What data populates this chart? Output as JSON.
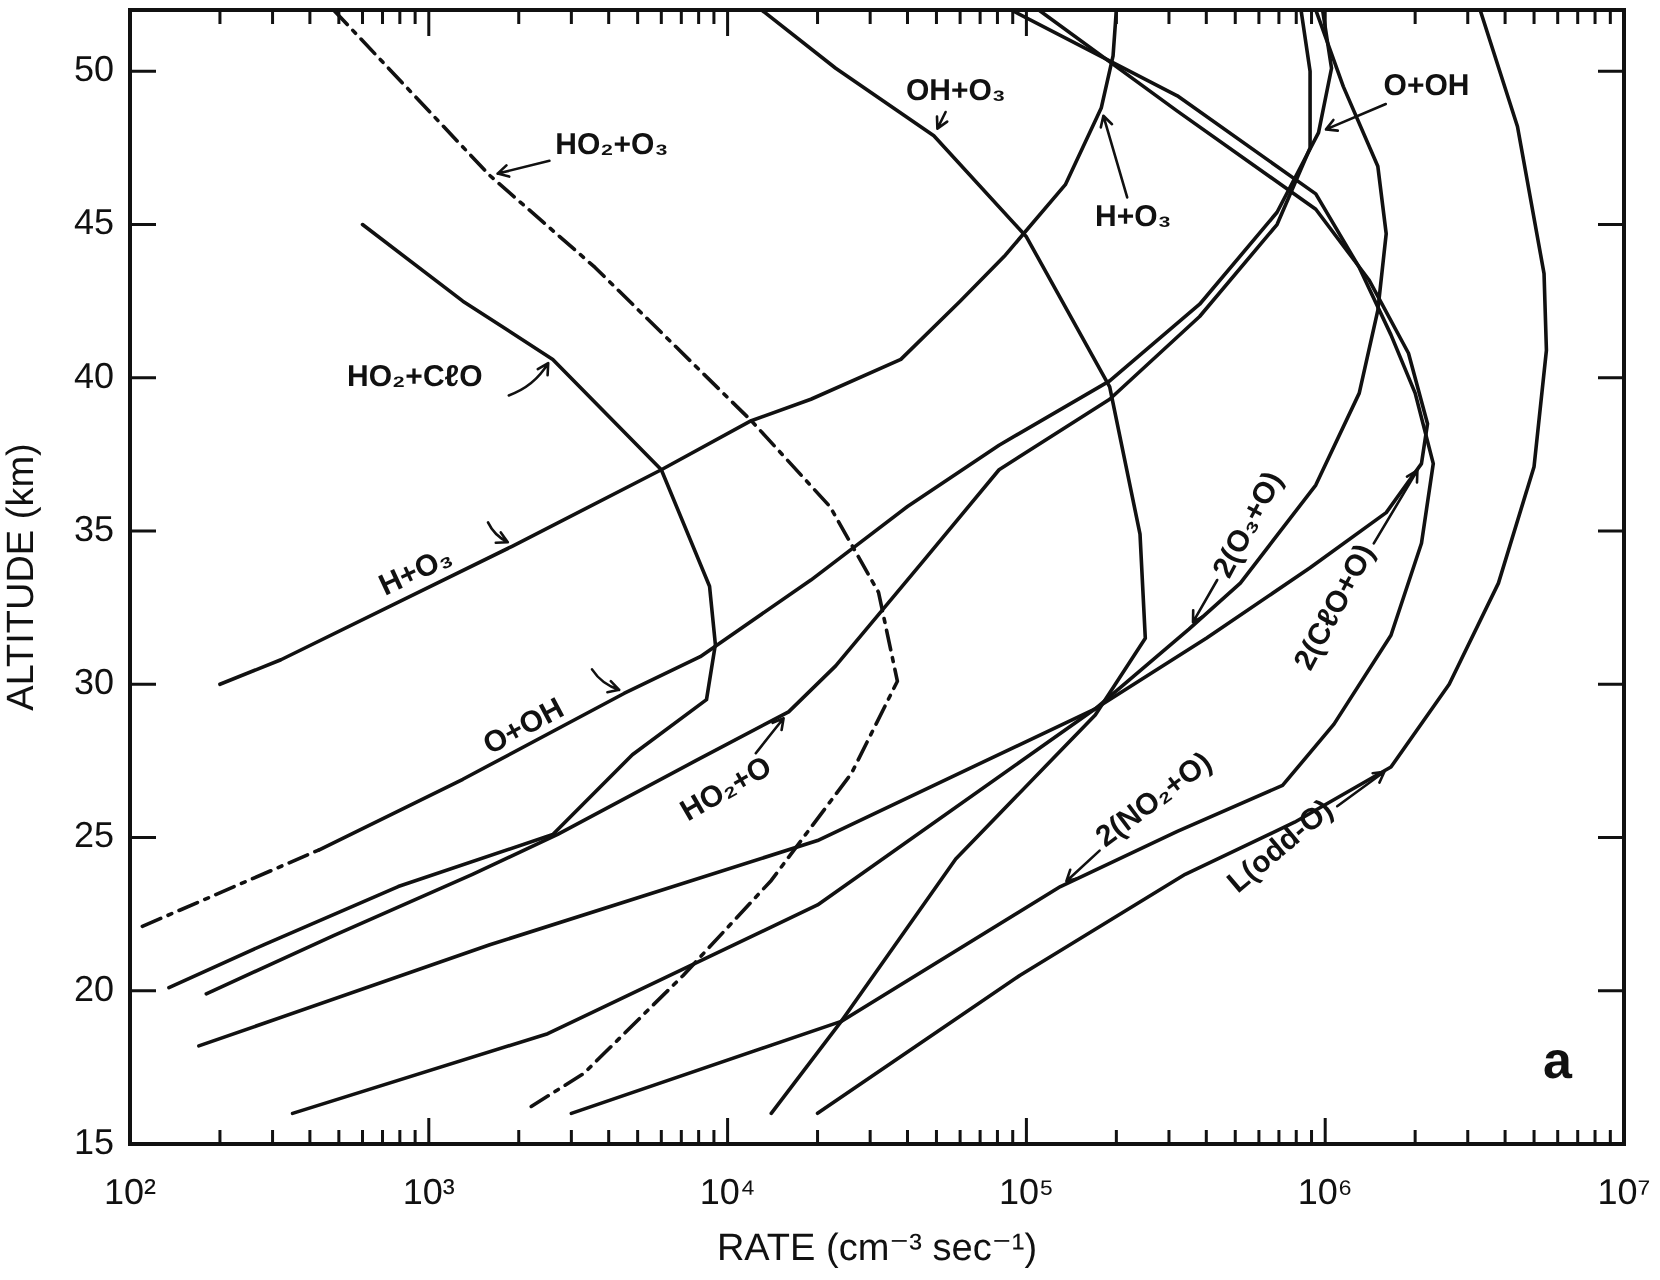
{
  "chart_data": {
    "type": "line",
    "xlabel": "RATE (cm⁻³ sec⁻¹)",
    "ylabel": "ALTITUDE (km)",
    "annotations": [
      "a"
    ],
    "log": "x",
    "xlim": [
      100,
      10000000
    ],
    "xticks": [
      {
        "value": 100,
        "label": "10²"
      },
      {
        "value": 200,
        "label": null
      },
      {
        "value": 300,
        "label": null
      },
      {
        "value": 400,
        "label": null
      },
      {
        "value": 500,
        "label": null
      },
      {
        "value": 600,
        "label": null
      },
      {
        "value": 700,
        "label": null
      },
      {
        "value": 800,
        "label": null
      },
      {
        "value": 900,
        "label": null
      },
      {
        "value": 1000,
        "label": "10³"
      },
      {
        "value": 2000,
        "label": null
      },
      {
        "value": 3000,
        "label": null
      },
      {
        "value": 4000,
        "label": null
      },
      {
        "value": 5000,
        "label": null
      },
      {
        "value": 6000,
        "label": null
      },
      {
        "value": 7000,
        "label": null
      },
      {
        "value": 8000,
        "label": null
      },
      {
        "value": 9000,
        "label": null
      },
      {
        "value": 10000,
        "label": "10⁴"
      },
      {
        "value": 20000,
        "label": null
      },
      {
        "value": 30000,
        "label": null
      },
      {
        "value": 40000,
        "label": null
      },
      {
        "value": 50000,
        "label": null
      },
      {
        "value": 60000,
        "label": null
      },
      {
        "value": 70000,
        "label": null
      },
      {
        "value": 80000,
        "label": null
      },
      {
        "value": 90000,
        "label": null
      },
      {
        "value": 100000,
        "label": "10⁵"
      },
      {
        "value": 200000,
        "label": null
      },
      {
        "value": 300000,
        "label": null
      },
      {
        "value": 400000,
        "label": null
      },
      {
        "value": 500000,
        "label": null
      },
      {
        "value": 600000,
        "label": null
      },
      {
        "value": 700000,
        "label": null
      },
      {
        "value": 800000,
        "label": null
      },
      {
        "value": 900000,
        "label": null
      },
      {
        "value": 1000000,
        "label": "10⁶"
      },
      {
        "value": 2000000,
        "label": null
      },
      {
        "value": 3000000,
        "label": null
      },
      {
        "value": 4000000,
        "label": null
      },
      {
        "value": 5000000,
        "label": null
      },
      {
        "value": 6000000,
        "label": null
      },
      {
        "value": 7000000,
        "label": null
      },
      {
        "value": 8000000,
        "label": null
      },
      {
        "value": 9000000,
        "label": null
      },
      {
        "value": 10000000,
        "label": "10⁷"
      }
    ],
    "ylim": [
      15,
      52
    ],
    "yticks": [
      15,
      20,
      25,
      30,
      35,
      40,
      45,
      50
    ],
    "series": [
      {
        "name": "HO₂+O₃",
        "color": "#111111",
        "line_style": "dashed",
        "x": [
          480,
          1600,
          3600,
          12000,
          22000,
          32000,
          37000,
          26000,
          14000,
          7100,
          3300,
          2100
        ],
        "values": [
          52.0,
          46.6,
          43.6,
          38.6,
          35.8,
          33.0,
          30.1,
          27.1,
          23.6,
          20.5,
          17.3,
          16.1
        ]
      },
      {
        "name": "HO₂+CℓO",
        "color": "#111111",
        "x": [
          600,
          1300,
          2600,
          6000,
          8700,
          9100,
          8500,
          4800,
          2600,
          790,
          280,
          135
        ],
        "values": [
          45.0,
          42.5,
          40.6,
          37.0,
          33.2,
          31.3,
          29.5,
          27.7,
          25.1,
          23.4,
          21.5,
          20.1
        ]
      },
      {
        "name": "H+O₃",
        "color": "#111111",
        "x": [
          200,
          320,
          1900,
          6000,
          12000,
          19000,
          38000,
          60000,
          85000,
          135000,
          178000,
          195000,
          200000
        ],
        "values": [
          30.0,
          30.8,
          34.5,
          37.0,
          38.6,
          39.3,
          40.6,
          42.5,
          44.0,
          46.3,
          48.8,
          50.5,
          52.0
        ]
      },
      {
        "name": "OH+O₃",
        "color": "#111111",
        "x": [
          13000,
          23000,
          49000,
          100000,
          190000,
          240000,
          250000,
          170000,
          58000,
          24000,
          14000
        ],
        "values": [
          52.0,
          50.1,
          47.9,
          44.6,
          39.7,
          34.9,
          31.5,
          29.0,
          24.3,
          19.0,
          16.0
        ]
      },
      {
        "name": "O+OH",
        "color": "#111111",
        "x": [
          430,
          1300,
          4500,
          8100,
          19000,
          40000,
          81000,
          190000,
          380000,
          690000,
          950000,
          1050000,
          980000
        ],
        "values": [
          24.6,
          26.9,
          29.7,
          30.9,
          33.4,
          35.8,
          37.8,
          39.9,
          42.4,
          45.4,
          48.0,
          50.1,
          52.0
        ]
      },
      {
        "color": "#111111",
        "line_style": "dashed",
        "x": [
          110,
          430
        ],
        "values": [
          22.1,
          24.6
        ]
      },
      {
        "name": "HO₂+O",
        "color": "#111111",
        "x": [
          180,
          480,
          1400,
          2700,
          7800,
          16000,
          23000,
          45000,
          81000,
          190000,
          380000,
          690000,
          890000,
          890000,
          830000
        ],
        "values": [
          19.9,
          21.8,
          23.8,
          25.1,
          27.5,
          29.1,
          30.6,
          34.0,
          37.0,
          39.3,
          42.0,
          45.0,
          47.5,
          50.0,
          52.0
        ]
      },
      {
        "name": "2(O₃+O)",
        "color": "#111111",
        "x": [
          350,
          2500,
          20000,
          170000,
          350000,
          520000,
          930000,
          1300000,
          1500000,
          1600000,
          1500000,
          1150000,
          930000
        ],
        "values": [
          16.0,
          18.6,
          22.8,
          29.2,
          31.8,
          33.3,
          36.5,
          39.5,
          42.2,
          44.7,
          46.9,
          49.5,
          52.0
        ]
      },
      {
        "name": "2(CℓO+O)",
        "color": "#111111",
        "x": [
          170,
          1600,
          20000,
          170000,
          400000,
          890000,
          1600000,
          2100000,
          2200000,
          1900000,
          1400000,
          930000,
          320000,
          110000
        ],
        "values": [
          18.2,
          21.5,
          24.9,
          29.2,
          31.5,
          33.8,
          35.6,
          37.2,
          38.5,
          40.8,
          43.2,
          45.5,
          48.7,
          52.0
        ]
      },
      {
        "name": "2(NO₂+O)",
        "color": "#111111",
        "x": [
          3000,
          24000,
          130000,
          320000,
          720000,
          1070000,
          1660000,
          2100000,
          2300000,
          2000000,
          1660000,
          1300000,
          930000,
          320000,
          89000
        ],
        "values": [
          16.0,
          19.0,
          23.4,
          25.2,
          26.7,
          28.7,
          31.6,
          34.6,
          37.2,
          39.5,
          41.4,
          43.6,
          46.0,
          49.2,
          52.0
        ]
      },
      {
        "name": "L(odd-O)",
        "color": "#111111",
        "x": [
          20000,
          95000,
          340000,
          790000,
          1660000,
          2600000,
          3800000,
          5000000,
          5500000,
          5400000,
          4400000,
          3300000
        ],
        "values": [
          16.0,
          20.5,
          23.8,
          25.5,
          27.3,
          30.0,
          33.3,
          37.1,
          40.9,
          43.4,
          48.2,
          52.0
        ]
      }
    ]
  }
}
